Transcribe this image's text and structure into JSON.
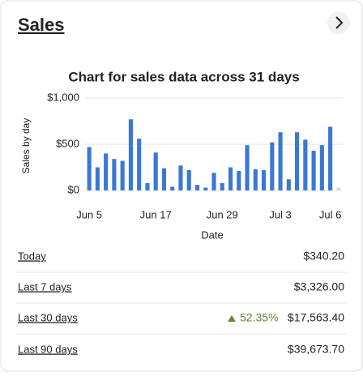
{
  "header": {
    "title": "Sales"
  },
  "chart_data": {
    "type": "bar",
    "title": "Chart for sales data across 31 days",
    "y_label": "Sales by day",
    "x_label": "Date",
    "categories": [
      "Jun 5",
      null,
      null,
      null,
      null,
      null,
      null,
      null,
      "Jun 17",
      null,
      null,
      null,
      null,
      null,
      null,
      null,
      "Jun 29",
      null,
      null,
      null,
      null,
      null,
      null,
      "Jul 3",
      null,
      null,
      null,
      null,
      null,
      "Jul 6",
      null
    ],
    "values": [
      470,
      250,
      400,
      340,
      320,
      770,
      560,
      80,
      410,
      240,
      40,
      270,
      220,
      60,
      30,
      190,
      80,
      250,
      210,
      490,
      230,
      220,
      520,
      630,
      120,
      630,
      550,
      430,
      490,
      690,
      30
    ],
    "colors": [
      "#3a78d4",
      "#3a78d4",
      "#3a78d4",
      "#3a78d4",
      "#3a78d4",
      "#3a78d4",
      "#3a78d4",
      "#3a78d4",
      "#3a78d4",
      "#3a78d4",
      "#3a78d4",
      "#3a78d4",
      "#3a78d4",
      "#3a78d4",
      "#3a78d4",
      "#3a78d4",
      "#3a78d4",
      "#3a78d4",
      "#3a78d4",
      "#3a78d4",
      "#3a78d4",
      "#3a78d4",
      "#3a78d4",
      "#3a78d4",
      "#3a78d4",
      "#3a78d4",
      "#3a78d4",
      "#3a78d4",
      "#3a78d4",
      "#3a78d4",
      "#c9dbf5"
    ],
    "ylim": [
      0,
      1000
    ],
    "yticks": [
      {
        "value": 0,
        "label": "$0"
      },
      {
        "value": 500,
        "label": "$500"
      },
      {
        "value": 1000,
        "label": "$1,000"
      }
    ],
    "grid": true
  },
  "stats": [
    {
      "label": "Today",
      "value": "$340.20"
    },
    {
      "label": "Last 7 days",
      "value": "$3,326.00"
    },
    {
      "label": "Last 30 days",
      "change": "52.35%",
      "value": "$17,563.40"
    },
    {
      "label": "Last 90 days",
      "value": "$39,673.70"
    }
  ]
}
